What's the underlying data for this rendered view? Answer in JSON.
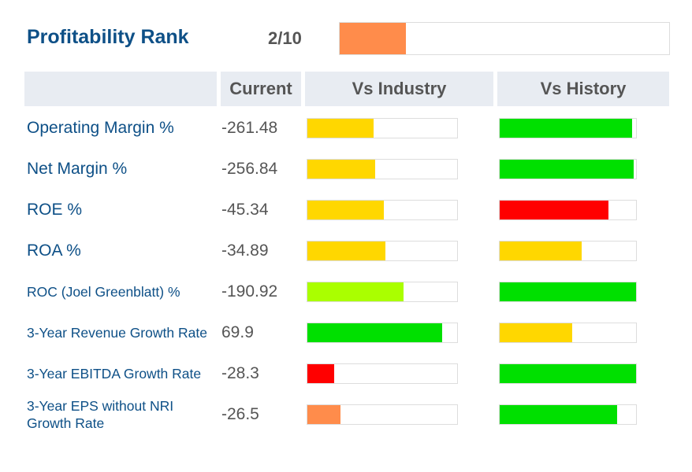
{
  "header": {
    "title": "Profitability Rank",
    "rank_text": "2/10",
    "rank_fraction": 0.2,
    "rank_color": "#ff8c4b"
  },
  "columns": {
    "current": "Current",
    "industry": "Vs Industry",
    "history": "Vs History"
  },
  "rows": [
    {
      "label": "Operating Margin %",
      "small": false,
      "current": "-261.48",
      "industry": {
        "fraction": 0.44,
        "color": "#ffd700"
      },
      "history": {
        "fraction": 0.97,
        "color": "#00e000"
      }
    },
    {
      "label": "Net Margin %",
      "small": false,
      "current": "-256.84",
      "industry": {
        "fraction": 0.45,
        "color": "#ffd700"
      },
      "history": {
        "fraction": 0.98,
        "color": "#00e000"
      }
    },
    {
      "label": "ROE %",
      "small": false,
      "current": "-45.34",
      "industry": {
        "fraction": 0.51,
        "color": "#ffd700"
      },
      "history": {
        "fraction": 0.8,
        "color": "#ff0000"
      }
    },
    {
      "label": "ROA %",
      "small": false,
      "current": "-34.89",
      "industry": {
        "fraction": 0.52,
        "color": "#ffd700"
      },
      "history": {
        "fraction": 0.6,
        "color": "#ffd700"
      }
    },
    {
      "label": "ROC (Joel Greenblatt) %",
      "small": true,
      "current": "-190.92",
      "industry": {
        "fraction": 0.64,
        "color": "#aaff00"
      },
      "history": {
        "fraction": 1.0,
        "color": "#00e000"
      }
    },
    {
      "label": "3-Year Revenue Growth Rate",
      "small": true,
      "current": "69.9",
      "industry": {
        "fraction": 0.9,
        "color": "#00e000"
      },
      "history": {
        "fraction": 0.53,
        "color": "#ffd700"
      }
    },
    {
      "label": "3-Year EBITDA Growth Rate",
      "small": true,
      "current": "-28.3",
      "industry": {
        "fraction": 0.18,
        "color": "#ff0000"
      },
      "history": {
        "fraction": 1.0,
        "color": "#00e000"
      }
    },
    {
      "label": "3-Year EPS without NRI Growth Rate",
      "small": true,
      "current": "-26.5",
      "industry": {
        "fraction": 0.22,
        "color": "#ff8c4b"
      },
      "history": {
        "fraction": 0.86,
        "color": "#00e000"
      }
    }
  ]
}
